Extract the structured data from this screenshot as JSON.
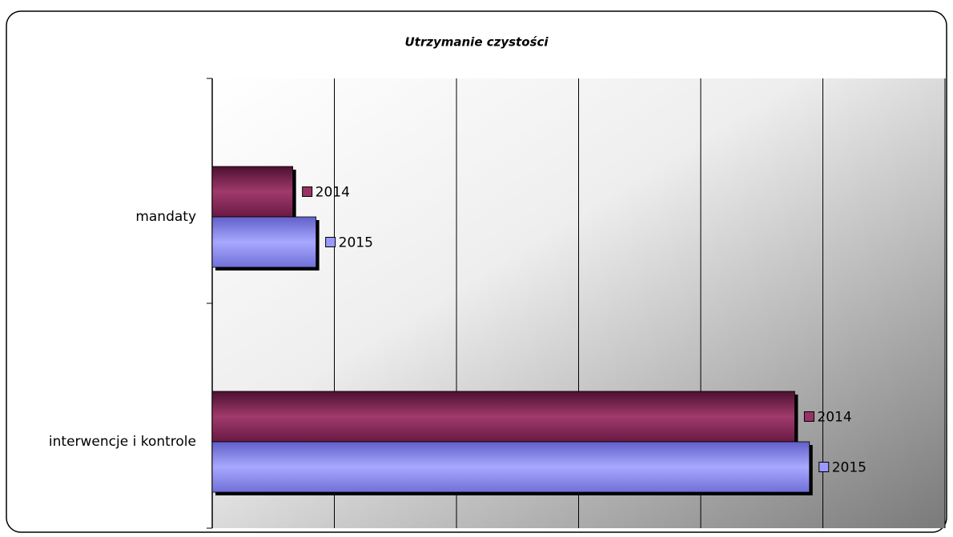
{
  "chart_data": {
    "type": "bar",
    "orientation": "horizontal",
    "title": "Utrzymanie czystości",
    "categories": [
      "mandaty",
      "interwencje i kontrole"
    ],
    "series": [
      {
        "name": "2014",
        "color": "#993366",
        "values": [
          0.66,
          4.77
        ]
      },
      {
        "name": "2015",
        "color": "#9999ff",
        "values": [
          0.85,
          4.89
        ]
      }
    ],
    "xlim": [
      0,
      6
    ],
    "xticks": [
      0,
      1,
      2,
      3,
      4,
      5,
      6
    ],
    "grid": true
  }
}
